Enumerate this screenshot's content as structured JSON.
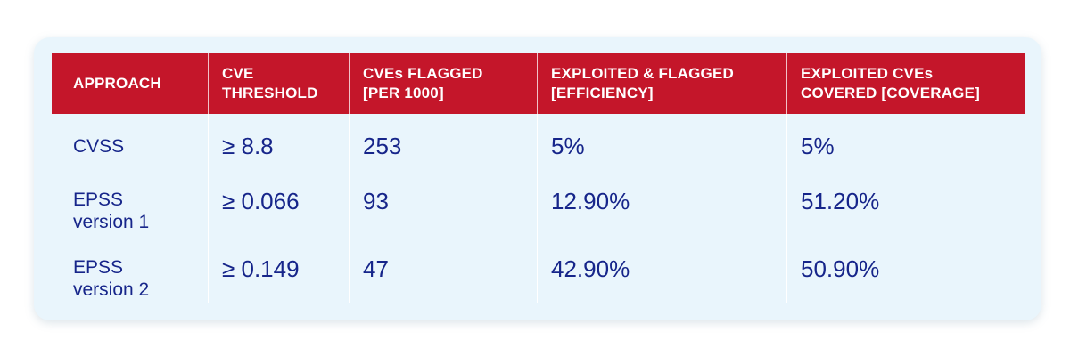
{
  "table": {
    "headers": [
      "APPROACH",
      "CVE\nTHRESHOLD",
      "CVEs FLAGGED\n[PER 1000]",
      "EXPLOITED & FLAGGED\n[EFFICIENCY]",
      "EXPLOITED CVEs\nCOVERED [COVERAGE]"
    ],
    "rows": [
      {
        "approach": "CVSS",
        "threshold": "≥ 8.8",
        "flagged": "253",
        "efficiency": "5%",
        "coverage": "5%"
      },
      {
        "approach": "EPSS\nversion 1",
        "threshold": "≥ 0.066",
        "flagged": "93",
        "efficiency": "12.90%",
        "coverage": "51.20%"
      },
      {
        "approach": "EPSS\nversion 2",
        "threshold": "≥ 0.149",
        "flagged": "47",
        "efficiency": "42.90%",
        "coverage": "50.90%"
      }
    ]
  },
  "colors": {
    "header_bg": "#c4162a",
    "header_text": "#ffffff",
    "body_text": "#16258a",
    "card_bg": "#e9f5fc"
  }
}
